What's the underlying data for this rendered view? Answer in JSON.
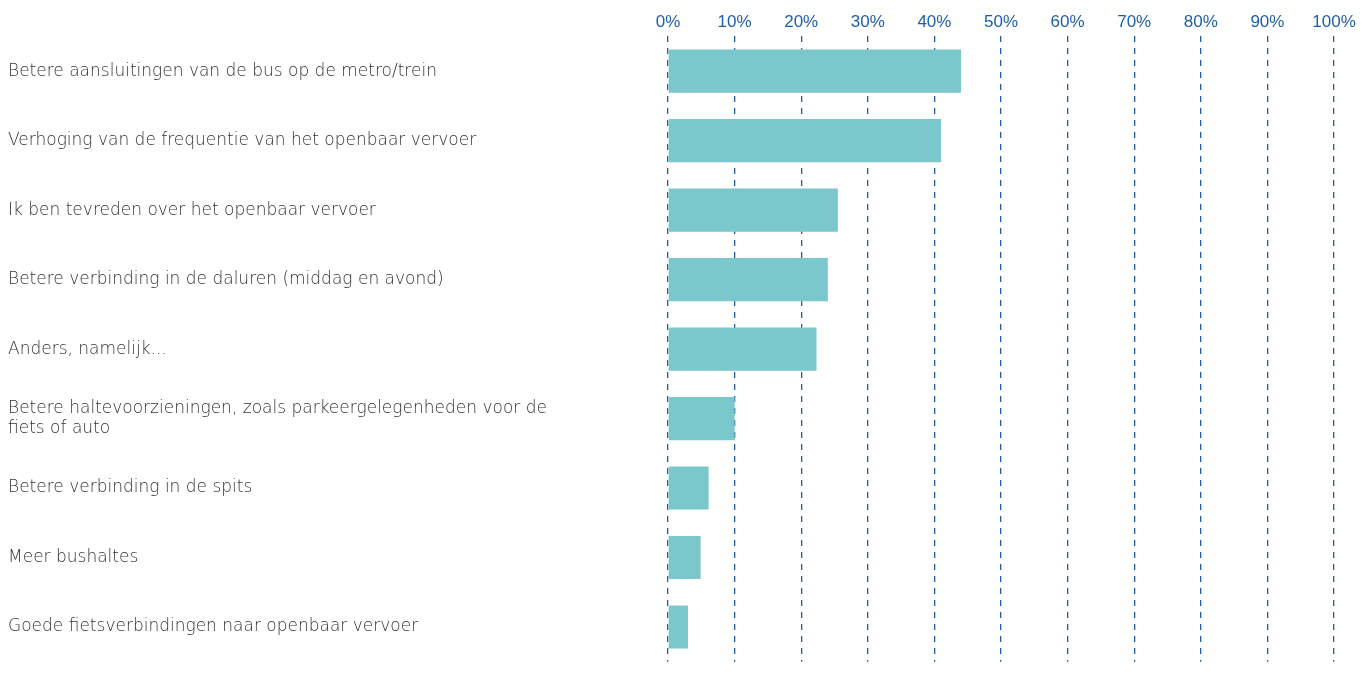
{
  "chart_data": {
    "type": "bar",
    "orientation": "horizontal",
    "categories": [
      "Betere aansluitingen van de bus op de metro/trein",
      "Verhoging van de frequentie van het openbaar vervoer",
      "Ik ben tevreden over het openbaar vervoer",
      "Betere verbinding in de daluren (middag en avond)",
      "Anders, namelijk...",
      "Betere haltevoorzieningen, zoals parkeergelegenheden voor de fiets of auto",
      "Betere verbinding in de spits",
      "Meer bushaltes",
      "Goede fietsverbindingen naar openbaar vervoer"
    ],
    "values": [
      44,
      41,
      25.5,
      24,
      22.3,
      10,
      6.1,
      4.9,
      3
    ],
    "color": "#7ac7cc",
    "xlim": [
      0,
      100
    ],
    "xticks": [
      {
        "value": 0,
        "label": "0%"
      },
      {
        "value": 10,
        "label": "10%"
      },
      {
        "value": 20,
        "label": "20%"
      },
      {
        "value": 30,
        "label": "30%"
      },
      {
        "value": 40,
        "label": "40%"
      },
      {
        "value": 50,
        "label": "50%"
      },
      {
        "value": 60,
        "label": "60%"
      },
      {
        "value": 70,
        "label": "70%"
      },
      {
        "value": 80,
        "label": "80%"
      },
      {
        "value": 90,
        "label": "90%"
      },
      {
        "value": 100,
        "label": "100%"
      }
    ],
    "grid": "x",
    "line_style": "dashed"
  }
}
